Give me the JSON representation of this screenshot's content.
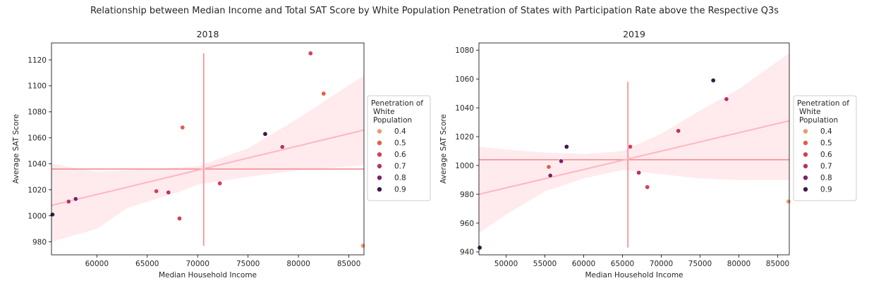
{
  "suptitle": "Relationship between Median Income and Total SAT Score by White Population Penetration of States with Participation Rate above the Respective Q3s",
  "colors": {
    "regression_line": "#ffb6c1",
    "confidence_band": "#ffe6ea",
    "median_lines": "#f4949a",
    "hue_palette": {
      "0.4": "#ea9a72",
      "0.5": "#e25f4a",
      "0.6": "#d63f55",
      "0.7": "#b83263",
      "0.8": "#7e2068",
      "0.9": "#3b1a4a"
    }
  },
  "chart_data": [
    {
      "type": "scatter",
      "title": "2018",
      "xlabel": "Median Household Income",
      "ylabel": "Average SAT Score",
      "xlim": [
        55500,
        86500
      ],
      "ylim": [
        970,
        1133
      ],
      "xticks": [
        60000,
        65000,
        70000,
        75000,
        80000,
        85000
      ],
      "yticks": [
        980,
        1000,
        1020,
        1040,
        1060,
        1080,
        1100,
        1120
      ],
      "grid": false,
      "legend": {
        "title": "Penetration of\nWhite\nPopulation",
        "placement": "right",
        "entries": [
          "0.4",
          "0.5",
          "0.6",
          "0.7",
          "0.8",
          "0.9"
        ]
      },
      "median_lines": {
        "x": 70600,
        "y": 1036,
        "x_span": [
          977,
          1125
        ],
        "y_span": [
          55500,
          86500
        ]
      },
      "regression": {
        "x0": 55500,
        "y0": 1008,
        "x1": 86500,
        "y1": 1066
      },
      "confidence_band": {
        "upper": [
          [
            55500,
            1040
          ],
          [
            60000,
            1034
          ],
          [
            65000,
            1036
          ],
          [
            70000,
            1038
          ],
          [
            75000,
            1052
          ],
          [
            80000,
            1075
          ],
          [
            86500,
            1108
          ]
        ],
        "lower": [
          [
            55500,
            980
          ],
          [
            60000,
            990
          ],
          [
            63000,
            1006
          ],
          [
            68000,
            1018
          ],
          [
            70000,
            1024
          ],
          [
            75000,
            1030
          ],
          [
            80000,
            1035
          ],
          [
            86500,
            1039
          ]
        ]
      },
      "points": [
        {
          "x": 55600,
          "y": 1001,
          "hue": "0.9"
        },
        {
          "x": 57200,
          "y": 1011,
          "hue": "0.7"
        },
        {
          "x": 57900,
          "y": 1013,
          "hue": "0.8"
        },
        {
          "x": 65900,
          "y": 1019,
          "hue": "0.6"
        },
        {
          "x": 67100,
          "y": 1018,
          "hue": "0.7"
        },
        {
          "x": 68200,
          "y": 998,
          "hue": "0.6"
        },
        {
          "x": 68500,
          "y": 1068,
          "hue": "0.5"
        },
        {
          "x": 72200,
          "y": 1025,
          "hue": "0.6"
        },
        {
          "x": 76700,
          "y": 1063,
          "hue": "0.9"
        },
        {
          "x": 78400,
          "y": 1053,
          "hue": "0.7"
        },
        {
          "x": 81200,
          "y": 1125,
          "hue": "0.6"
        },
        {
          "x": 82500,
          "y": 1094,
          "hue": "0.5"
        },
        {
          "x": 86400,
          "y": 977,
          "hue": "0.4"
        }
      ]
    },
    {
      "type": "scatter",
      "title": "2019",
      "xlabel": "Median Household Income",
      "ylabel": "Average SAT Score",
      "xlim": [
        46500,
        86500
      ],
      "ylim": [
        938,
        1085
      ],
      "xticks": [
        50000,
        55000,
        60000,
        65000,
        70000,
        75000,
        80000,
        85000
      ],
      "yticks": [
        940,
        960,
        980,
        1000,
        1020,
        1040,
        1060,
        1080
      ],
      "grid": false,
      "legend": {
        "title": "Penetration of\nWhite\nPopulation",
        "placement": "right",
        "entries": [
          "0.4",
          "0.5",
          "0.6",
          "0.7",
          "0.8",
          "0.9"
        ]
      },
      "median_lines": {
        "x": 65700,
        "y": 1004,
        "x_span": [
          943,
          1058
        ],
        "y_span": [
          46500,
          86500
        ]
      },
      "regression": {
        "x0": 46500,
        "y0": 980,
        "x1": 86500,
        "y1": 1031
      },
      "confidence_band": {
        "upper": [
          [
            46500,
            1013
          ],
          [
            50000,
            1011
          ],
          [
            55000,
            1009
          ],
          [
            60000,
            1008
          ],
          [
            65000,
            1010
          ],
          [
            70000,
            1022
          ],
          [
            75000,
            1038
          ],
          [
            80000,
            1053
          ],
          [
            86500,
            1078
          ]
        ],
        "lower": [
          [
            46500,
            953
          ],
          [
            50000,
            966
          ],
          [
            55000,
            982
          ],
          [
            60000,
            991
          ],
          [
            65000,
            997
          ],
          [
            70000,
            994
          ],
          [
            75000,
            991
          ],
          [
            80000,
            990
          ],
          [
            86500,
            990
          ]
        ]
      },
      "points": [
        {
          "x": 46600,
          "y": 943,
          "hue": "0.9"
        },
        {
          "x": 55500,
          "y": 999,
          "hue": "0.5"
        },
        {
          "x": 55700,
          "y": 993,
          "hue": "0.8"
        },
        {
          "x": 57100,
          "y": 1003,
          "hue": "0.8"
        },
        {
          "x": 57800,
          "y": 1013,
          "hue": "0.9"
        },
        {
          "x": 66000,
          "y": 1013,
          "hue": "0.6"
        },
        {
          "x": 67100,
          "y": 995,
          "hue": "0.7"
        },
        {
          "x": 68200,
          "y": 985,
          "hue": "0.6"
        },
        {
          "x": 72200,
          "y": 1024,
          "hue": "0.7"
        },
        {
          "x": 76700,
          "y": 1059,
          "hue": "0.9"
        },
        {
          "x": 78400,
          "y": 1046,
          "hue": "0.7"
        },
        {
          "x": 86400,
          "y": 975,
          "hue": "0.4"
        }
      ]
    }
  ]
}
